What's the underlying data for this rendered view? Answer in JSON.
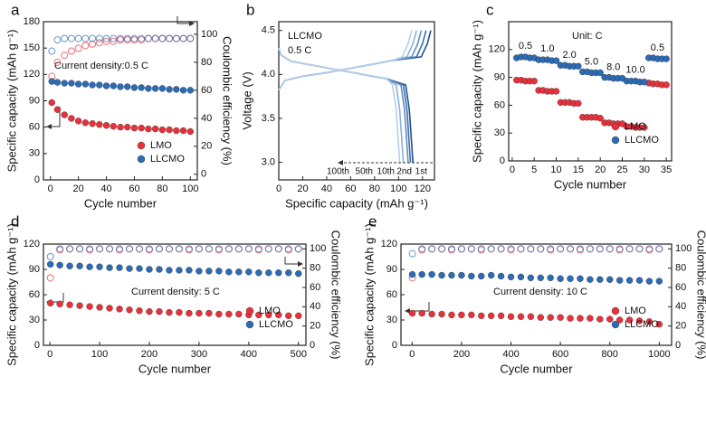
{
  "chart_data": [
    {
      "type": "scatter",
      "panel_label": "a",
      "xlabel": "Cycle number",
      "ylabel": "Specific capacity (mAh g⁻¹)",
      "y2label": "Coulombic efficiency (%)",
      "annotations": [
        "Current density:0.5 C"
      ],
      "legend": "lower right",
      "xlim": [
        -5,
        105
      ],
      "xticks": [
        0,
        20,
        40,
        60,
        80,
        100
      ],
      "ylim": [
        0,
        180
      ],
      "yticks": [
        0,
        30,
        60,
        90,
        120,
        150,
        180
      ],
      "y2lim": [
        -4,
        109
      ],
      "y2ticks": [
        0,
        20,
        40,
        60,
        80,
        100
      ],
      "x": [
        1,
        5,
        10,
        15,
        20,
        25,
        30,
        35,
        40,
        45,
        50,
        55,
        60,
        65,
        70,
        75,
        80,
        85,
        90,
        95,
        100
      ],
      "series": [
        {
          "name": "LMO",
          "color": "#e8313a",
          "values": [
            88,
            80,
            74,
            70,
            67,
            65,
            64,
            63,
            62,
            61,
            60,
            60,
            59,
            59,
            58,
            58,
            57,
            57,
            56,
            56,
            55
          ],
          "ce": [
            70,
            80,
            85,
            88,
            90,
            92,
            93,
            94,
            95,
            95,
            96,
            96,
            96,
            96,
            97,
            97,
            97,
            97,
            97,
            97,
            97
          ]
        },
        {
          "name": "LLCMO",
          "color": "#2c6bb5",
          "values": [
            112,
            111,
            110,
            110,
            109,
            109,
            108,
            108,
            107,
            107,
            106,
            106,
            105,
            105,
            104,
            104,
            104,
            103,
            103,
            102,
            102
          ],
          "ce": [
            88,
            96,
            97,
            97,
            97,
            97,
            97,
            97,
            97,
            97,
            97,
            97,
            97,
            97,
            97,
            97,
            97,
            97,
            97,
            97,
            97
          ]
        }
      ]
    },
    {
      "type": "line",
      "panel_label": "b",
      "xlabel": "Specific capacity (mAh g⁻¹)",
      "ylabel": "Voltage (V)",
      "annotations": [
        "LLCMO",
        "0.5 C"
      ],
      "xlim": [
        0,
        130
      ],
      "xticks": [
        0,
        20,
        40,
        60,
        80,
        100,
        120
      ],
      "ylim": [
        2.8,
        4.6
      ],
      "yticks": [
        {
          "value": 3,
          "label": "3.0"
        },
        3.5,
        {
          "value": 4,
          "label": "4.0"
        },
        4.5
      ],
      "series": [
        {
          "name": "1st",
          "color": "#1f4f8f",
          "x": [
            0,
            5,
            20,
            40,
            60,
            80,
            95,
            119,
            124,
            127,
            null,
            0,
            2,
            10,
            30,
            50,
            70,
            90,
            106,
            109,
            111,
            112
          ],
          "values": [
            3.82,
            3.93,
            3.98,
            4.02,
            4.07,
            4.12,
            4.16,
            4.2,
            4.35,
            4.5,
            null,
            4.3,
            4.22,
            4.15,
            4.1,
            4.05,
            4.0,
            3.95,
            3.88,
            3.6,
            3.2,
            3.0
          ]
        },
        {
          "name": "2nd",
          "color": "#3b6fae",
          "x": [
            0,
            5,
            20,
            40,
            60,
            80,
            95,
            115,
            120,
            123,
            null,
            0,
            2,
            10,
            30,
            50,
            70,
            90,
            104,
            107,
            109,
            110
          ],
          "values": [
            3.82,
            3.93,
            3.98,
            4.02,
            4.07,
            4.12,
            4.16,
            4.2,
            4.35,
            4.5,
            null,
            4.3,
            4.22,
            4.15,
            4.1,
            4.05,
            4.0,
            3.95,
            3.88,
            3.6,
            3.2,
            3.0
          ]
        },
        {
          "name": "10th",
          "color": "#5f8ec6",
          "x": [
            0,
            5,
            20,
            40,
            60,
            80,
            95,
            111,
            116,
            119,
            null,
            0,
            2,
            10,
            30,
            50,
            70,
            90,
            102,
            105,
            107,
            108
          ],
          "values": [
            3.82,
            3.93,
            3.98,
            4.02,
            4.07,
            4.12,
            4.16,
            4.2,
            4.35,
            4.5,
            null,
            4.3,
            4.22,
            4.15,
            4.1,
            4.05,
            4.0,
            3.95,
            3.88,
            3.6,
            3.2,
            3.0
          ]
        },
        {
          "name": "50th",
          "color": "#8cb0d8",
          "x": [
            0,
            5,
            20,
            40,
            60,
            80,
            95,
            107,
            112,
            115,
            null,
            0,
            2,
            10,
            30,
            50,
            70,
            90,
            98,
            101,
            103,
            104
          ],
          "values": [
            3.82,
            3.93,
            3.98,
            4.02,
            4.07,
            4.12,
            4.16,
            4.2,
            4.35,
            4.5,
            null,
            4.3,
            4.22,
            4.15,
            4.1,
            4.05,
            4.0,
            3.95,
            3.88,
            3.6,
            3.2,
            3.0
          ]
        },
        {
          "name": "100th",
          "color": "#b7cfe8",
          "x": [
            0,
            5,
            20,
            40,
            60,
            80,
            95,
            103,
            108,
            111,
            null,
            0,
            2,
            10,
            30,
            50,
            70,
            90,
            95,
            98,
            100,
            101
          ],
          "values": [
            3.82,
            3.93,
            3.98,
            4.02,
            4.07,
            4.12,
            4.16,
            4.2,
            4.35,
            4.5,
            null,
            4.3,
            4.22,
            4.15,
            4.1,
            4.05,
            4.0,
            3.95,
            3.88,
            3.6,
            3.2,
            3.0
          ]
        }
      ]
    },
    {
      "type": "scatter",
      "panel_label": "c",
      "xlabel": "Cycle number",
      "ylabel": "Specific capacity (mAh g⁻¹)",
      "annotations": [
        "Unit: C"
      ],
      "rate_labels": [
        "0.5",
        "1.0",
        "2.0",
        "5.0",
        "8.0",
        "10.0",
        "0.5"
      ],
      "legend": "lower right",
      "xlim": [
        -0.8,
        36.2
      ],
      "xticks": [
        0,
        5,
        10,
        15,
        20,
        25,
        30,
        35
      ],
      "ylim": [
        0,
        150
      ],
      "yticks": [
        0,
        30,
        60,
        90,
        120
      ],
      "x": [
        1,
        2,
        3,
        4,
        5,
        6,
        7,
        8,
        9,
        10,
        11,
        12,
        13,
        14,
        15,
        16,
        17,
        18,
        19,
        20,
        21,
        22,
        23,
        24,
        25,
        26,
        27,
        28,
        29,
        30,
        31,
        32,
        33,
        34,
        35
      ],
      "series": [
        {
          "name": "LMO",
          "color": "#e8313a",
          "values": [
            87,
            87,
            86,
            86,
            86,
            76,
            76,
            75,
            75,
            75,
            63,
            63,
            63,
            62,
            62,
            47,
            47,
            47,
            47,
            46,
            41,
            41,
            40,
            40,
            40,
            37,
            37,
            36,
            36,
            36,
            84,
            83,
            83,
            82,
            82
          ]
        },
        {
          "name": "LLCMO",
          "color": "#2c6bb5",
          "values": [
            111,
            112,
            112,
            111,
            111,
            109,
            109,
            109,
            108,
            108,
            103,
            103,
            102,
            102,
            102,
            96,
            96,
            95,
            95,
            95,
            90,
            90,
            89,
            89,
            89,
            86,
            86,
            86,
            85,
            85,
            111,
            111,
            110,
            110,
            110
          ]
        }
      ]
    },
    {
      "type": "scatter",
      "panel_label": "d",
      "xlabel": "Cycle number",
      "ylabel": "Specific capacity (mAh g⁻¹)",
      "y2label": "Coulombic efficiency (%)",
      "annotations": [
        "Current density: 5 C"
      ],
      "legend": "lower right",
      "xlim": [
        -13,
        515
      ],
      "xticks": [
        0,
        100,
        200,
        300,
        400,
        500
      ],
      "ylim": [
        0,
        120
      ],
      "yticks": [
        0,
        30,
        60,
        90,
        120
      ],
      "y2lim": [
        0,
        105
      ],
      "y2ticks": [
        0,
        20,
        40,
        60,
        80,
        100
      ],
      "x": [
        1,
        20,
        40,
        60,
        80,
        100,
        120,
        140,
        160,
        180,
        200,
        220,
        240,
        260,
        280,
        300,
        320,
        340,
        360,
        380,
        400,
        420,
        440,
        460,
        480,
        500
      ],
      "series": [
        {
          "name": "LMO",
          "color": "#e8313a",
          "values": [
            50,
            49,
            48,
            47,
            46,
            45,
            44,
            43,
            42,
            41,
            40,
            40,
            39,
            39,
            38,
            38,
            38,
            37,
            37,
            37,
            36,
            36,
            36,
            36,
            35,
            35
          ],
          "ce": [
            70,
            99,
            100,
            100,
            99,
            100,
            100,
            99,
            100,
            100,
            99,
            100,
            100,
            100,
            99,
            100,
            100,
            99,
            100,
            100,
            100,
            99,
            100,
            100,
            99,
            100
          ]
        },
        {
          "name": "LLCMO",
          "color": "#2c6bb5",
          "values": [
            96,
            95,
            94,
            94,
            93,
            93,
            92,
            92,
            91,
            91,
            90,
            90,
            89,
            89,
            89,
            88,
            88,
            88,
            87,
            87,
            87,
            86,
            86,
            86,
            86,
            85
          ],
          "ce": [
            92,
            100,
            100,
            100,
            100,
            100,
            100,
            100,
            100,
            100,
            100,
            100,
            100,
            100,
            100,
            100,
            100,
            100,
            100,
            100,
            100,
            100,
            100,
            100,
            100,
            100
          ]
        }
      ]
    },
    {
      "type": "scatter",
      "panel_label": "e",
      "xlabel": "Cycle number",
      "ylabel": "Specific capacity (mAh g⁻¹)",
      "y2label": "Coulombic efficiency (%)",
      "annotations": [
        "Current density: 10 C"
      ],
      "legend": "lower right",
      "xlim": [
        -45,
        1050
      ],
      "xticks": [
        0,
        200,
        400,
        600,
        800,
        1000
      ],
      "ylim": [
        0,
        120
      ],
      "yticks": [
        0,
        30,
        60,
        90,
        120
      ],
      "y2lim": [
        0,
        105
      ],
      "y2ticks": [
        0,
        20,
        40,
        60,
        80,
        100
      ],
      "x": [
        1,
        40,
        80,
        120,
        160,
        200,
        240,
        280,
        320,
        360,
        400,
        440,
        480,
        520,
        560,
        600,
        640,
        680,
        720,
        760,
        800,
        840,
        880,
        920,
        960,
        1000
      ],
      "series": [
        {
          "name": "LMO",
          "color": "#e8313a",
          "values": [
            38,
            38,
            37,
            37,
            36,
            36,
            36,
            35,
            35,
            35,
            34,
            34,
            34,
            33,
            33,
            33,
            32,
            32,
            32,
            31,
            31,
            30,
            30,
            29,
            28,
            25
          ],
          "ce": [
            70,
            99,
            100,
            100,
            99,
            100,
            100,
            99,
            100,
            100,
            99,
            100,
            100,
            100,
            99,
            100,
            100,
            99,
            100,
            100,
            100,
            99,
            100,
            100,
            99,
            100
          ]
        },
        {
          "name": "LLCMO",
          "color": "#2c6bb5",
          "values": [
            84,
            84,
            84,
            83,
            83,
            83,
            82,
            82,
            83,
            82,
            81,
            81,
            80,
            80,
            80,
            79,
            79,
            79,
            78,
            78,
            78,
            77,
            77,
            77,
            76,
            76
          ],
          "ce": [
            95,
            100,
            100,
            100,
            100,
            100,
            100,
            100,
            100,
            100,
            100,
            100,
            100,
            100,
            100,
            100,
            100,
            100,
            100,
            100,
            100,
            100,
            100,
            100,
            100,
            100
          ]
        }
      ]
    }
  ]
}
